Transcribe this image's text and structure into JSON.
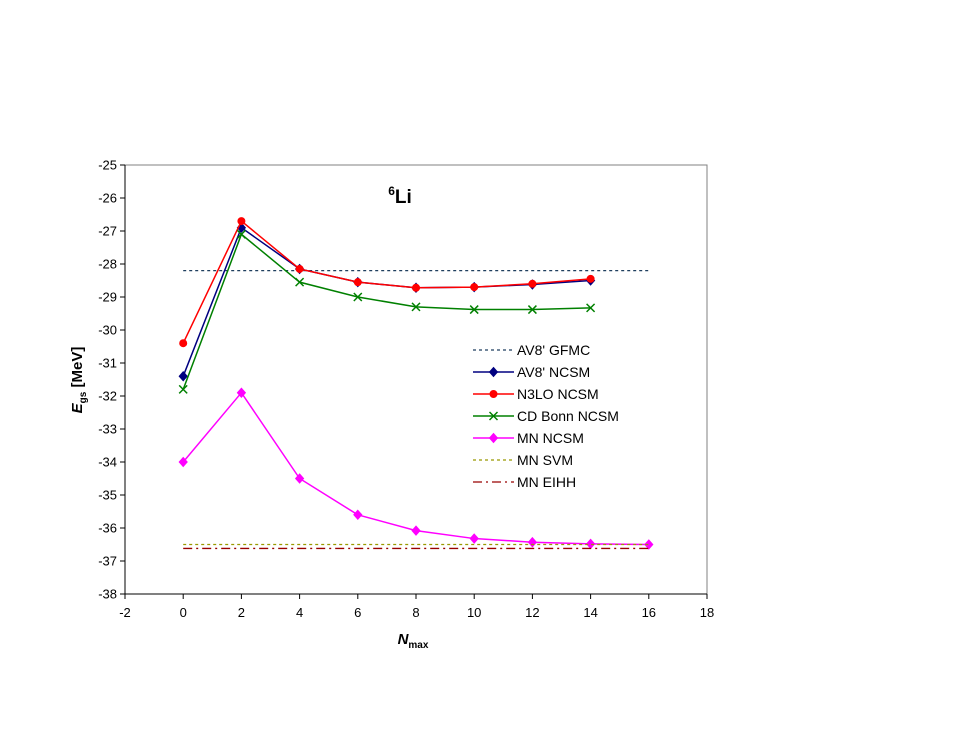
{
  "chart_data": {
    "type": "line",
    "title": "Li",
    "title_isotope_mass": "6",
    "xlabel": "N",
    "xlabel_subscript": "max",
    "ylabel": "E",
    "ylabel_subscript": "gs",
    "ylabel_unit": " [MeV]",
    "xlim": [
      -2,
      18
    ],
    "ylim": [
      -38,
      -25
    ],
    "x_ticks": [
      -2,
      0,
      2,
      4,
      6,
      8,
      10,
      12,
      14,
      16,
      18
    ],
    "y_ticks": [
      -25,
      -26,
      -27,
      -28,
      -29,
      -30,
      -31,
      -32,
      -33,
      -34,
      -35,
      -36,
      -37,
      -38
    ],
    "grid": false,
    "legend_position": "right-middle",
    "series": [
      {
        "name": "AV8' GFMC",
        "color": "#1f3f5f",
        "line": "dotted",
        "marker": "none",
        "x": [
          0,
          16
        ],
        "y": [
          -28.2,
          -28.2
        ]
      },
      {
        "name": "AV8' NCSM",
        "color": "#000080",
        "line": "solid",
        "marker": "diamond",
        "x": [
          0,
          2,
          4,
          6,
          8,
          10,
          12,
          14
        ],
        "y": [
          -31.4,
          -26.9,
          -28.15,
          -28.55,
          -28.72,
          -28.7,
          -28.62,
          -28.5
        ]
      },
      {
        "name": "N3LO NCSM",
        "color": "#ff0000",
        "line": "solid",
        "marker": "circle",
        "x": [
          0,
          2,
          4,
          6,
          8,
          10,
          12,
          14
        ],
        "y": [
          -30.4,
          -26.7,
          -28.15,
          -28.55,
          -28.72,
          -28.7,
          -28.6,
          -28.45
        ]
      },
      {
        "name": "CD Bonn NCSM",
        "color": "#008000",
        "line": "solid",
        "marker": "x",
        "x": [
          0,
          2,
          4,
          6,
          8,
          10,
          12,
          14
        ],
        "y": [
          -31.8,
          -27.1,
          -28.55,
          -29.0,
          -29.3,
          -29.38,
          -29.38,
          -29.33
        ]
      },
      {
        "name": "MN NCSM",
        "color": "#ff00ff",
        "line": "solid",
        "marker": "diamond",
        "x": [
          0,
          2,
          4,
          6,
          8,
          10,
          12,
          14,
          16
        ],
        "y": [
          -34.0,
          -31.9,
          -34.5,
          -35.6,
          -36.08,
          -36.32,
          -36.43,
          -36.48,
          -36.5
        ]
      },
      {
        "name": "MN SVM",
        "color": "#999900",
        "line": "dotted",
        "marker": "none",
        "x": [
          0,
          16
        ],
        "y": [
          -36.5,
          -36.5
        ]
      },
      {
        "name": "MN EIHH",
        "color": "#990000",
        "line": "dashdot",
        "marker": "none",
        "x": [
          0,
          16
        ],
        "y": [
          -36.62,
          -36.62
        ]
      }
    ]
  }
}
